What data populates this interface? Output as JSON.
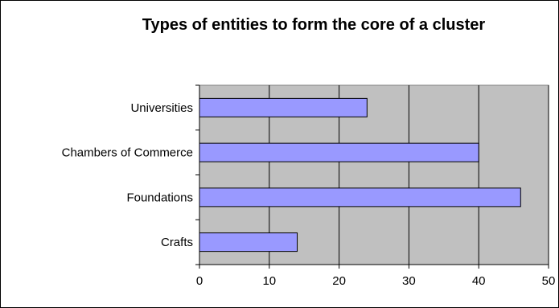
{
  "chart_data": {
    "type": "bar",
    "orientation": "horizontal",
    "title": "Types of entities to form the core of a cluster",
    "xlabel": "",
    "ylabel": "",
    "categories": [
      "Crafts",
      "Foundations",
      "Chambers of Commerce",
      "Universities"
    ],
    "values": [
      14,
      46,
      40,
      24
    ],
    "xlim": [
      0,
      50
    ],
    "xticks": [
      0,
      10,
      20,
      30,
      40,
      50
    ],
    "grid": true,
    "legend": "none",
    "colors": {
      "bar": "#9999ff",
      "plot_background": "#c0c0c0",
      "gridline": "#000000"
    }
  }
}
